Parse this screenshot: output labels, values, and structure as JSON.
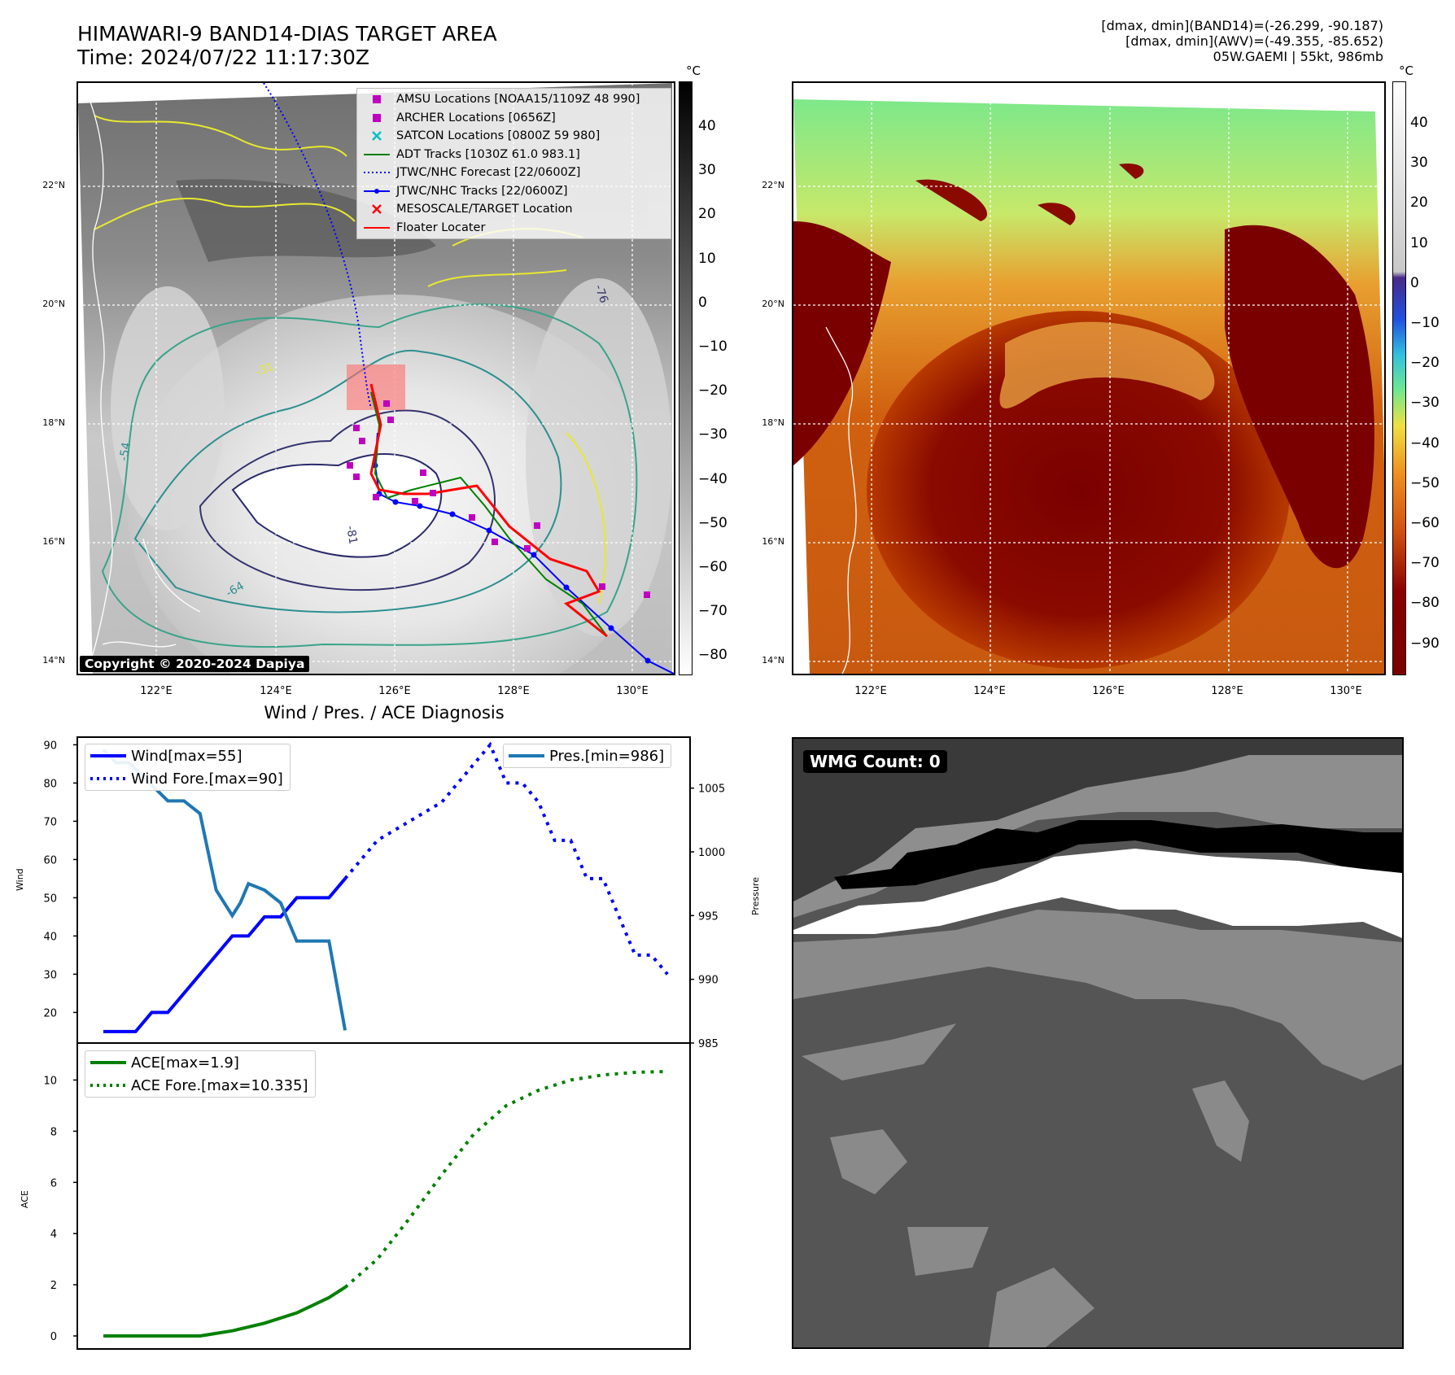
{
  "header": {
    "title_line1": "HIMAWARI-9 BAND14-DIAS TARGET AREA",
    "title_line2": "Time: 2024/07/22 11:17:30Z",
    "stats_line1": "[dmax, dmin](BAND14)=(-26.299, -90.187)",
    "stats_line2": "[dmax, dmin](AWV)=(-49.355, -85.652)",
    "stats_line3": "05W.GAEMI | 55kt, 986mb"
  },
  "map_ir": {
    "lat_ticks": [
      "22°N",
      "20°N",
      "18°N",
      "16°N",
      "14°N"
    ],
    "lon_ticks": [
      "122°E",
      "124°E",
      "126°E",
      "128°E",
      "130°E"
    ],
    "colorbar_unit": "°C",
    "colorbar_ticks": [
      "40",
      "30",
      "20",
      "10",
      "0",
      "−10",
      "−20",
      "−30",
      "−40",
      "−50",
      "−60",
      "−70",
      "−80"
    ],
    "copyright": "Copyright © 2020-2024 Dapiya",
    "legend": [
      {
        "label": "AMSU Locations [NOAA15/1109Z 48 990]",
        "symbol": "square",
        "color": "#c000c0"
      },
      {
        "label": "ARCHER Locations [0656Z]",
        "symbol": "square",
        "color": "#c000c0"
      },
      {
        "label": "SATCON Locations [0800Z 59 980]",
        "symbol": "x",
        "color": "#00c0c0"
      },
      {
        "label": "ADT Tracks [1030Z 61.0 983.1]",
        "symbol": "line",
        "color": "#008000"
      },
      {
        "label": "JTWC/NHC Forecast [22/0600Z]",
        "symbol": "dotted",
        "color": "#0000ff"
      },
      {
        "label": "JTWC/NHC Tracks [22/0600Z]",
        "symbol": "line-dot",
        "color": "#0000ff"
      },
      {
        "label": "MESOSCALE/TARGET Location",
        "symbol": "x",
        "color": "#ff0000"
      },
      {
        "label": "Floater Locater",
        "symbol": "line",
        "color": "#ff0000"
      }
    ],
    "contour_labels": [
      "-31",
      "-54",
      "-64",
      "-76",
      "-81"
    ]
  },
  "map_wv": {
    "lat_ticks": [
      "22°N",
      "20°N",
      "18°N",
      "16°N",
      "14°N"
    ],
    "lon_ticks": [
      "122°E",
      "124°E",
      "126°E",
      "128°E",
      "130°E"
    ],
    "colorbar_unit": "°C",
    "colorbar_ticks": [
      "40",
      "30",
      "20",
      "10",
      "0",
      "−10",
      "−20",
      "−30",
      "−40",
      "−50",
      "−60",
      "−70",
      "−80",
      "−90"
    ]
  },
  "wmg": {
    "badge": "WMG Count: 0"
  },
  "chart_data": [
    {
      "type": "line",
      "title": "Wind / Pres. / ACE Diagnosis",
      "ylabel": "Wind",
      "y2label": "Pressure",
      "ylim": [
        12,
        92
      ],
      "y2lim": [
        985,
        1009
      ],
      "yticks": [
        "90",
        "80",
        "70",
        "60",
        "50",
        "40",
        "30",
        "20"
      ],
      "y2ticks": [
        "1005",
        "1000",
        "995",
        "990",
        "985"
      ],
      "series": [
        {
          "name": "Wind[max=55]",
          "axis": "left",
          "style": "solid",
          "color": "#0000ff",
          "x": [
            0,
            2,
            3,
            4,
            5,
            6,
            7,
            8,
            9,
            10,
            11,
            12,
            13,
            14,
            15
          ],
          "values": [
            15,
            15,
            20,
            20,
            25,
            30,
            35,
            40,
            40,
            45,
            45,
            50,
            50,
            50,
            55
          ]
        },
        {
          "name": "Wind Fore.[max=90]",
          "axis": "left",
          "style": "dotted",
          "color": "#0000ff",
          "x": [
            15,
            17,
            19,
            21,
            23,
            24,
            25,
            26,
            27,
            28,
            29,
            30,
            31,
            32,
            33,
            34,
            35
          ],
          "values": [
            55,
            65,
            70,
            75,
            85,
            90,
            80,
            80,
            75,
            65,
            65,
            55,
            55,
            45,
            35,
            35,
            30
          ]
        },
        {
          "name": "Pres.[min=986]",
          "axis": "right",
          "style": "solid",
          "color": "#1f77b4",
          "x": [
            0,
            0.8,
            1.6,
            2.4,
            3.2,
            4,
            5,
            6,
            7,
            7.5,
            8,
            8.5,
            9,
            10,
            11,
            12,
            13,
            14,
            15
          ],
          "values": [
            1008,
            1007,
            1007,
            1006,
            1005,
            1004,
            1004,
            1003,
            997,
            996,
            995,
            996,
            997.5,
            997,
            996,
            993,
            993,
            993,
            986
          ]
        }
      ]
    },
    {
      "type": "line",
      "ylabel": "ACE",
      "ylim": [
        -0.5,
        11
      ],
      "yticks": [
        "10",
        "8",
        "6",
        "4",
        "2",
        "0"
      ],
      "series": [
        {
          "name": "ACE[max=1.9]",
          "style": "solid",
          "color": "#008000",
          "x": [
            0,
            2,
            4,
            6,
            8,
            10,
            12,
            14,
            15
          ],
          "values": [
            0,
            0,
            0,
            0,
            0.2,
            0.5,
            0.9,
            1.5,
            1.9
          ]
        },
        {
          "name": "ACE Fore.[max=10.335]",
          "style": "dotted",
          "color": "#008000",
          "x": [
            15,
            17,
            19,
            21,
            23,
            25,
            27,
            29,
            31,
            33,
            35
          ],
          "values": [
            1.9,
            3.0,
            4.6,
            6.3,
            7.9,
            9.0,
            9.6,
            10.0,
            10.2,
            10.3,
            10.335
          ]
        }
      ]
    }
  ]
}
